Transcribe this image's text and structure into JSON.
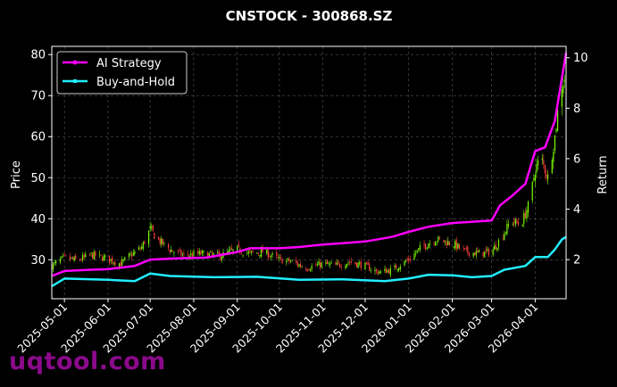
{
  "chart_data": {
    "type": "line",
    "title": "CNSTOCK - 300868.SZ",
    "xlabel": "",
    "ylabel": "Price",
    "y2label": "Return",
    "ylim": [
      20.5,
      82
    ],
    "y2lim": [
      0.45,
      10.45
    ],
    "yticks": [
      30,
      40,
      50,
      60,
      70,
      80
    ],
    "y2ticks": [
      2,
      4,
      6,
      8,
      10
    ],
    "xlim": [
      "2025-04-22",
      "2026-04-23"
    ],
    "xticks": [
      "2025-05-01",
      "2025-06-01",
      "2025-07-01",
      "2025-08-01",
      "2025-09-01",
      "2025-10-01",
      "2025-11-01",
      "2025-12-01",
      "2026-01-01",
      "2026-02-01",
      "2026-03-01",
      "2026-04-01"
    ],
    "grid": true,
    "legend_position": "top-left",
    "candles": {
      "up_color": "#7cfc00",
      "down_color": "#ff4040",
      "close": [
        [
          "2025-04-22",
          28.5
        ],
        [
          "2025-05-01",
          30.5
        ],
        [
          "2025-05-10",
          29.8
        ],
        [
          "2025-05-20",
          31.2
        ],
        [
          "2025-06-01",
          30.2
        ],
        [
          "2025-06-10",
          29.0
        ],
        [
          "2025-06-15",
          30.5
        ],
        [
          "2025-06-25",
          33.0
        ],
        [
          "2025-07-01",
          37.5
        ],
        [
          "2025-07-06",
          35.0
        ],
        [
          "2025-07-15",
          32.5
        ],
        [
          "2025-07-25",
          31.0
        ],
        [
          "2025-08-05",
          31.5
        ],
        [
          "2025-08-20",
          31.0
        ],
        [
          "2025-09-01",
          32.5
        ],
        [
          "2025-09-10",
          31.5
        ],
        [
          "2025-09-20",
          32.0
        ],
        [
          "2025-10-01",
          30.0
        ],
        [
          "2025-10-10",
          29.5
        ],
        [
          "2025-10-20",
          28.0
        ],
        [
          "2025-11-01",
          29.0
        ],
        [
          "2025-11-10",
          28.5
        ],
        [
          "2025-11-20",
          29.5
        ],
        [
          "2025-12-01",
          28.5
        ],
        [
          "2025-12-10",
          27.0
        ],
        [
          "2025-12-20",
          27.5
        ],
        [
          "2026-01-01",
          30.0
        ],
        [
          "2026-01-10",
          33.0
        ],
        [
          "2026-01-20",
          35.0
        ],
        [
          "2026-02-01",
          34.0
        ],
        [
          "2026-02-10",
          32.0
        ],
        [
          "2026-02-20",
          31.5
        ],
        [
          "2026-03-01",
          32.0
        ],
        [
          "2026-03-07",
          35.0
        ],
        [
          "2026-03-15",
          39.5
        ],
        [
          "2026-03-22",
          38.5
        ],
        [
          "2026-03-28",
          44.0
        ],
        [
          "2026-04-01",
          52.0
        ],
        [
          "2026-04-05",
          55.0
        ],
        [
          "2026-04-10",
          50.0
        ],
        [
          "2026-04-15",
          60.0
        ],
        [
          "2026-04-19",
          72.0
        ],
        [
          "2026-04-23",
          75.0
        ]
      ]
    },
    "series": [
      {
        "name": "AI Strategy",
        "axis": "right",
        "color": "#ff00ff",
        "points": [
          [
            "2025-04-22",
            1.35
          ],
          [
            "2025-05-01",
            1.55
          ],
          [
            "2025-05-20",
            1.6
          ],
          [
            "2025-06-01",
            1.62
          ],
          [
            "2025-06-20",
            1.75
          ],
          [
            "2025-07-01",
            2.0
          ],
          [
            "2025-07-20",
            2.05
          ],
          [
            "2025-08-10",
            2.08
          ],
          [
            "2025-09-01",
            2.3
          ],
          [
            "2025-09-10",
            2.45
          ],
          [
            "2025-10-01",
            2.45
          ],
          [
            "2025-10-15",
            2.5
          ],
          [
            "2025-11-01",
            2.6
          ],
          [
            "2025-11-15",
            2.65
          ],
          [
            "2025-12-01",
            2.72
          ],
          [
            "2025-12-20",
            2.9
          ],
          [
            "2026-01-01",
            3.1
          ],
          [
            "2026-01-15",
            3.3
          ],
          [
            "2026-02-01",
            3.45
          ],
          [
            "2026-02-15",
            3.5
          ],
          [
            "2026-03-01",
            3.55
          ],
          [
            "2026-03-07",
            4.15
          ],
          [
            "2026-03-15",
            4.5
          ],
          [
            "2026-03-25",
            5.0
          ],
          [
            "2026-04-01",
            6.3
          ],
          [
            "2026-04-08",
            6.45
          ],
          [
            "2026-04-15",
            7.5
          ],
          [
            "2026-04-20",
            9.2
          ],
          [
            "2026-04-23",
            10.2
          ]
        ]
      },
      {
        "name": "Buy-and-Hold",
        "axis": "right",
        "color": "#22eeff",
        "points": [
          [
            "2025-04-22",
            0.95
          ],
          [
            "2025-05-01",
            1.25
          ],
          [
            "2025-06-01",
            1.2
          ],
          [
            "2025-06-20",
            1.15
          ],
          [
            "2025-07-01",
            1.45
          ],
          [
            "2025-07-15",
            1.35
          ],
          [
            "2025-08-15",
            1.3
          ],
          [
            "2025-09-15",
            1.32
          ],
          [
            "2025-10-15",
            1.2
          ],
          [
            "2025-11-15",
            1.22
          ],
          [
            "2025-12-15",
            1.15
          ],
          [
            "2026-01-01",
            1.25
          ],
          [
            "2026-01-15",
            1.4
          ],
          [
            "2026-02-01",
            1.38
          ],
          [
            "2026-02-15",
            1.3
          ],
          [
            "2026-03-01",
            1.35
          ],
          [
            "2026-03-10",
            1.6
          ],
          [
            "2026-03-25",
            1.75
          ],
          [
            "2026-04-01",
            2.1
          ],
          [
            "2026-04-10",
            2.1
          ],
          [
            "2026-04-15",
            2.4
          ],
          [
            "2026-04-20",
            2.8
          ],
          [
            "2026-04-23",
            2.9
          ]
        ]
      }
    ]
  },
  "watermark": "uqtool.com"
}
